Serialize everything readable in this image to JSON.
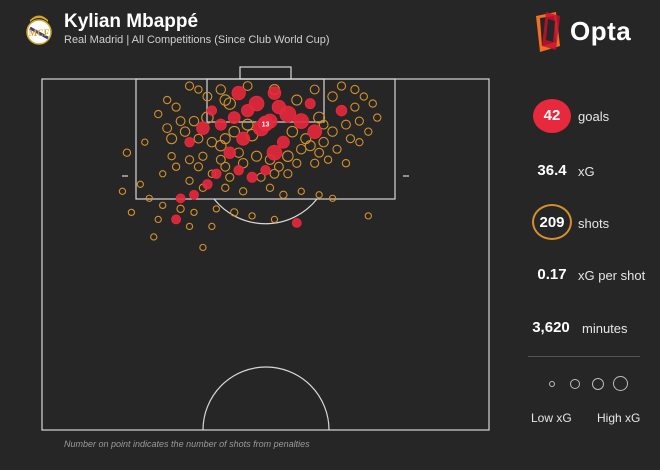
{
  "header": {
    "title": "Kylian Mbappé",
    "subtitle": "Real Madrid | All Competitions (Since Club World Cup)"
  },
  "brand": {
    "name": "Opta"
  },
  "footer": {
    "note": "Number on point indicates the number of shots from penalties"
  },
  "stats": {
    "goals": {
      "value": "42",
      "label": "goals"
    },
    "xg": {
      "value": "36.4",
      "label": "xG"
    },
    "shots": {
      "value": "209",
      "label": "shots"
    },
    "xg_per_shot": {
      "value": "0.17",
      "label": "xG per shot"
    },
    "minutes": {
      "value": "3,620",
      "label": "minutes"
    }
  },
  "legend": {
    "low": "Low xG",
    "high": "High xG"
  },
  "colors": {
    "background": "#262626",
    "goal": "#e8283c",
    "non_goal": "#d4902e",
    "pitch_lines": "#d8d8d8",
    "brand_orange": "#f36f21",
    "brand_red": "#c8102e"
  },
  "chart_data": {
    "type": "scatter",
    "description_units": "x: 0-100 across pitch width (left to right); y: 0-100 from goal line toward halfway line; xg: expected goals of shot",
    "penalty": {
      "x": 50,
      "y": 11,
      "count": "13",
      "outcome": "goal",
      "xg": 0.79
    },
    "shots": [
      {
        "x": 44,
        "y": 4,
        "xg": 0.14,
        "goal": true
      },
      {
        "x": 52,
        "y": 4,
        "xg": 0.12,
        "goal": true
      },
      {
        "x": 41,
        "y": 6,
        "xg": 0.07,
        "goal": false
      },
      {
        "x": 57,
        "y": 6,
        "xg": 0.06,
        "goal": false
      },
      {
        "x": 65,
        "y": 5,
        "xg": 0.05,
        "goal": false
      },
      {
        "x": 37,
        "y": 5,
        "xg": 0.04,
        "goal": false
      },
      {
        "x": 48,
        "y": 7,
        "xg": 0.18,
        "goal": true
      },
      {
        "x": 53,
        "y": 8,
        "xg": 0.14,
        "goal": true
      },
      {
        "x": 46,
        "y": 9,
        "xg": 0.11,
        "goal": true
      },
      {
        "x": 55,
        "y": 10,
        "xg": 0.22,
        "goal": true
      },
      {
        "x": 51,
        "y": 12,
        "xg": 0.16,
        "goal": true
      },
      {
        "x": 43,
        "y": 11,
        "xg": 0.1,
        "goal": true
      },
      {
        "x": 49,
        "y": 14,
        "xg": 0.2,
        "goal": true
      },
      {
        "x": 58,
        "y": 12,
        "xg": 0.18,
        "goal": true
      },
      {
        "x": 40,
        "y": 13,
        "xg": 0.08,
        "goal": true
      },
      {
        "x": 36,
        "y": 14,
        "xg": 0.12,
        "goal": true
      },
      {
        "x": 61,
        "y": 15,
        "xg": 0.15,
        "goal": true
      },
      {
        "x": 45,
        "y": 17,
        "xg": 0.13,
        "goal": true
      },
      {
        "x": 54,
        "y": 18,
        "xg": 0.1,
        "goal": true
      },
      {
        "x": 33,
        "y": 18,
        "xg": 0.05,
        "goal": true
      },
      {
        "x": 67,
        "y": 9,
        "xg": 0.07,
        "goal": true
      },
      {
        "x": 42,
        "y": 21,
        "xg": 0.09,
        "goal": true
      },
      {
        "x": 52,
        "y": 21,
        "xg": 0.18,
        "goal": true
      },
      {
        "x": 39,
        "y": 27,
        "xg": 0.05,
        "goal": true
      },
      {
        "x": 47,
        "y": 28,
        "xg": 0.06,
        "goal": true
      },
      {
        "x": 37,
        "y": 30,
        "xg": 0.05,
        "goal": true
      },
      {
        "x": 34,
        "y": 33,
        "xg": 0.04,
        "goal": true
      },
      {
        "x": 31,
        "y": 34,
        "xg": 0.04,
        "goal": true
      },
      {
        "x": 30,
        "y": 40,
        "xg": 0.04,
        "goal": true
      },
      {
        "x": 57,
        "y": 41,
        "xg": 0.04,
        "goal": true
      },
      {
        "x": 44,
        "y": 26,
        "xg": 0.05,
        "goal": true
      },
      {
        "x": 50,
        "y": 26,
        "xg": 0.05,
        "goal": true
      },
      {
        "x": 60,
        "y": 7,
        "xg": 0.06,
        "goal": true
      },
      {
        "x": 38,
        "y": 9,
        "xg": 0.05,
        "goal": true
      },
      {
        "x": 33,
        "y": 2,
        "xg": 0.03,
        "goal": false
      },
      {
        "x": 35,
        "y": 3,
        "xg": 0.02,
        "goal": false
      },
      {
        "x": 40,
        "y": 3,
        "xg": 0.05,
        "goal": false
      },
      {
        "x": 46,
        "y": 2,
        "xg": 0.04,
        "goal": false
      },
      {
        "x": 52,
        "y": 3,
        "xg": 0.06,
        "goal": false
      },
      {
        "x": 61,
        "y": 3,
        "xg": 0.04,
        "goal": false
      },
      {
        "x": 67,
        "y": 2,
        "xg": 0.03,
        "goal": false
      },
      {
        "x": 70,
        "y": 3,
        "xg": 0.03,
        "goal": false
      },
      {
        "x": 72,
        "y": 5,
        "xg": 0.02,
        "goal": false
      },
      {
        "x": 74,
        "y": 7,
        "xg": 0.02,
        "goal": false
      },
      {
        "x": 70,
        "y": 8,
        "xg": 0.03,
        "goal": false
      },
      {
        "x": 28,
        "y": 6,
        "xg": 0.02,
        "goal": false
      },
      {
        "x": 30,
        "y": 8,
        "xg": 0.03,
        "goal": false
      },
      {
        "x": 26,
        "y": 10,
        "xg": 0.02,
        "goal": false
      },
      {
        "x": 31,
        "y": 12,
        "xg": 0.04,
        "goal": false
      },
      {
        "x": 28,
        "y": 14,
        "xg": 0.04,
        "goal": false
      },
      {
        "x": 32,
        "y": 15,
        "xg": 0.05,
        "goal": false
      },
      {
        "x": 29,
        "y": 17,
        "xg": 0.06,
        "goal": false
      },
      {
        "x": 35,
        "y": 17,
        "xg": 0.04,
        "goal": false
      },
      {
        "x": 38,
        "y": 18,
        "xg": 0.05,
        "goal": false
      },
      {
        "x": 41,
        "y": 17,
        "xg": 0.06,
        "goal": false
      },
      {
        "x": 43,
        "y": 15,
        "xg": 0.07,
        "goal": false
      },
      {
        "x": 46,
        "y": 13,
        "xg": 0.08,
        "goal": false
      },
      {
        "x": 56,
        "y": 15,
        "xg": 0.07,
        "goal": false
      },
      {
        "x": 59,
        "y": 17,
        "xg": 0.06,
        "goal": false
      },
      {
        "x": 63,
        "y": 18,
        "xg": 0.05,
        "goal": false
      },
      {
        "x": 65,
        "y": 15,
        "xg": 0.05,
        "goal": false
      },
      {
        "x": 68,
        "y": 13,
        "xg": 0.04,
        "goal": false
      },
      {
        "x": 71,
        "y": 12,
        "xg": 0.03,
        "goal": false
      },
      {
        "x": 73,
        "y": 15,
        "xg": 0.02,
        "goal": false
      },
      {
        "x": 69,
        "y": 17,
        "xg": 0.03,
        "goal": false
      },
      {
        "x": 66,
        "y": 20,
        "xg": 0.03,
        "goal": false
      },
      {
        "x": 62,
        "y": 21,
        "xg": 0.04,
        "goal": false
      },
      {
        "x": 58,
        "y": 20,
        "xg": 0.05,
        "goal": false
      },
      {
        "x": 55,
        "y": 22,
        "xg": 0.07,
        "goal": false
      },
      {
        "x": 48,
        "y": 22,
        "xg": 0.06,
        "goal": false
      },
      {
        "x": 44,
        "y": 21,
        "xg": 0.05,
        "goal": false
      },
      {
        "x": 40,
        "y": 23,
        "xg": 0.04,
        "goal": false
      },
      {
        "x": 36,
        "y": 22,
        "xg": 0.03,
        "goal": false
      },
      {
        "x": 33,
        "y": 23,
        "xg": 0.03,
        "goal": false
      },
      {
        "x": 29,
        "y": 22,
        "xg": 0.02,
        "goal": false
      },
      {
        "x": 30,
        "y": 25,
        "xg": 0.02,
        "goal": false
      },
      {
        "x": 35,
        "y": 25,
        "xg": 0.03,
        "goal": false
      },
      {
        "x": 41,
        "y": 25,
        "xg": 0.04,
        "goal": false
      },
      {
        "x": 45,
        "y": 24,
        "xg": 0.05,
        "goal": false
      },
      {
        "x": 51,
        "y": 23,
        "xg": 0.05,
        "goal": false
      },
      {
        "x": 53,
        "y": 25,
        "xg": 0.04,
        "goal": false
      },
      {
        "x": 57,
        "y": 24,
        "xg": 0.03,
        "goal": false
      },
      {
        "x": 61,
        "y": 24,
        "xg": 0.03,
        "goal": false
      },
      {
        "x": 64,
        "y": 23,
        "xg": 0.02,
        "goal": false
      },
      {
        "x": 68,
        "y": 24,
        "xg": 0.02,
        "goal": false
      },
      {
        "x": 19,
        "y": 21,
        "xg": 0.02,
        "goal": false
      },
      {
        "x": 52,
        "y": 27,
        "xg": 0.04,
        "goal": false
      },
      {
        "x": 55,
        "y": 27,
        "xg": 0.03,
        "goal": false
      },
      {
        "x": 49,
        "y": 28,
        "xg": 0.03,
        "goal": false
      },
      {
        "x": 42,
        "y": 28,
        "xg": 0.03,
        "goal": false
      },
      {
        "x": 38,
        "y": 27,
        "xg": 0.02,
        "goal": false
      },
      {
        "x": 27,
        "y": 27,
        "xg": 0.01,
        "goal": false
      },
      {
        "x": 22,
        "y": 30,
        "xg": 0.01,
        "goal": false
      },
      {
        "x": 33,
        "y": 29,
        "xg": 0.02,
        "goal": false
      },
      {
        "x": 36,
        "y": 31,
        "xg": 0.02,
        "goal": false
      },
      {
        "x": 41,
        "y": 31,
        "xg": 0.02,
        "goal": false
      },
      {
        "x": 45,
        "y": 32,
        "xg": 0.02,
        "goal": false
      },
      {
        "x": 51,
        "y": 31,
        "xg": 0.02,
        "goal": false
      },
      {
        "x": 54,
        "y": 33,
        "xg": 0.02,
        "goal": false
      },
      {
        "x": 58,
        "y": 32,
        "xg": 0.01,
        "goal": false
      },
      {
        "x": 62,
        "y": 33,
        "xg": 0.01,
        "goal": false
      },
      {
        "x": 65,
        "y": 34,
        "xg": 0.01,
        "goal": false
      },
      {
        "x": 24,
        "y": 34,
        "xg": 0.01,
        "goal": false
      },
      {
        "x": 27,
        "y": 36,
        "xg": 0.01,
        "goal": false
      },
      {
        "x": 31,
        "y": 37,
        "xg": 0.02,
        "goal": false
      },
      {
        "x": 34,
        "y": 38,
        "xg": 0.01,
        "goal": false
      },
      {
        "x": 39,
        "y": 37,
        "xg": 0.01,
        "goal": false
      },
      {
        "x": 43,
        "y": 38,
        "xg": 0.02,
        "goal": false
      },
      {
        "x": 47,
        "y": 39,
        "xg": 0.01,
        "goal": false
      },
      {
        "x": 52,
        "y": 40,
        "xg": 0.01,
        "goal": false
      },
      {
        "x": 26,
        "y": 40,
        "xg": 0.01,
        "goal": false
      },
      {
        "x": 33,
        "y": 42,
        "xg": 0.01,
        "goal": false
      },
      {
        "x": 38,
        "y": 42,
        "xg": 0.01,
        "goal": false
      },
      {
        "x": 25,
        "y": 45,
        "xg": 0.01,
        "goal": false
      },
      {
        "x": 36,
        "y": 48,
        "xg": 0.01,
        "goal": false
      },
      {
        "x": 73,
        "y": 39,
        "xg": 0.01,
        "goal": false
      },
      {
        "x": 18,
        "y": 32,
        "xg": 0.01,
        "goal": false
      },
      {
        "x": 20,
        "y": 38,
        "xg": 0.01,
        "goal": false
      },
      {
        "x": 62,
        "y": 11,
        "xg": 0.08,
        "goal": false
      },
      {
        "x": 37,
        "y": 11,
        "xg": 0.09,
        "goal": false
      },
      {
        "x": 40,
        "y": 19,
        "xg": 0.07,
        "goal": false
      },
      {
        "x": 60,
        "y": 19,
        "xg": 0.06,
        "goal": false
      },
      {
        "x": 34,
        "y": 12,
        "xg": 0.05,
        "goal": false
      },
      {
        "x": 47,
        "y": 16,
        "xg": 0.09,
        "goal": false
      },
      {
        "x": 63,
        "y": 13,
        "xg": 0.04,
        "goal": false
      },
      {
        "x": 71,
        "y": 18,
        "xg": 0.02,
        "goal": false
      },
      {
        "x": 75,
        "y": 11,
        "xg": 0.02,
        "goal": false
      },
      {
        "x": 23,
        "y": 18,
        "xg": 0.01,
        "goal": false
      },
      {
        "x": 42,
        "y": 7,
        "xg": 0.09,
        "goal": false
      }
    ]
  }
}
